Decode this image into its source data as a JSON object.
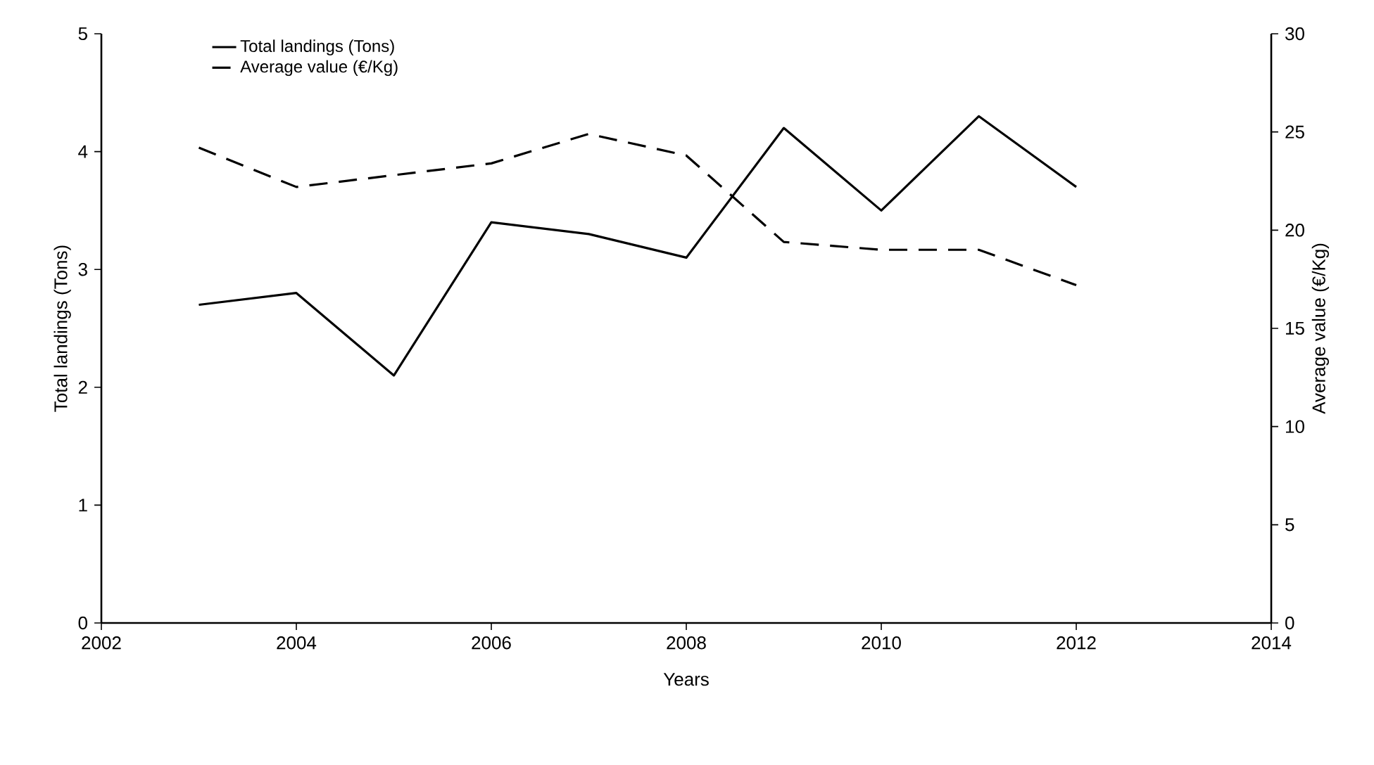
{
  "chart_data": {
    "type": "line",
    "xlabel": "Years",
    "ylabel": "Total landings (Tons)",
    "y2label": "Average value (€/Kg)",
    "x": [
      2003,
      2004,
      2005,
      2006,
      2007,
      2008,
      2009,
      2010,
      2011,
      2012
    ],
    "series": [
      {
        "name": "Total landings (Tons)",
        "color": "#000000",
        "line_style": "solid",
        "values": [
          2.7,
          2.8,
          2.1,
          3.4,
          3.3,
          3.1,
          4.2,
          3.5,
          4.3,
          3.7
        ]
      },
      {
        "name": "Average value (€/Kg)",
        "color": "#000000",
        "line_style": "dashed",
        "axis": "y2",
        "values": [
          24.2,
          22.2,
          22.8,
          23.4,
          24.9,
          23.8,
          19.4,
          19.0,
          19.0,
          17.2
        ]
      }
    ],
    "xlim": [
      2002,
      2014
    ],
    "xticks": [
      2002,
      2004,
      2006,
      2008,
      2010,
      2012,
      2014
    ],
    "ylim": [
      0,
      5
    ],
    "yticks": [
      0,
      1,
      2,
      3,
      4,
      5
    ],
    "y2lim": [
      0,
      30
    ],
    "y2ticks": [
      0,
      5,
      10,
      15,
      20,
      25,
      30
    ],
    "legend": "top left"
  }
}
